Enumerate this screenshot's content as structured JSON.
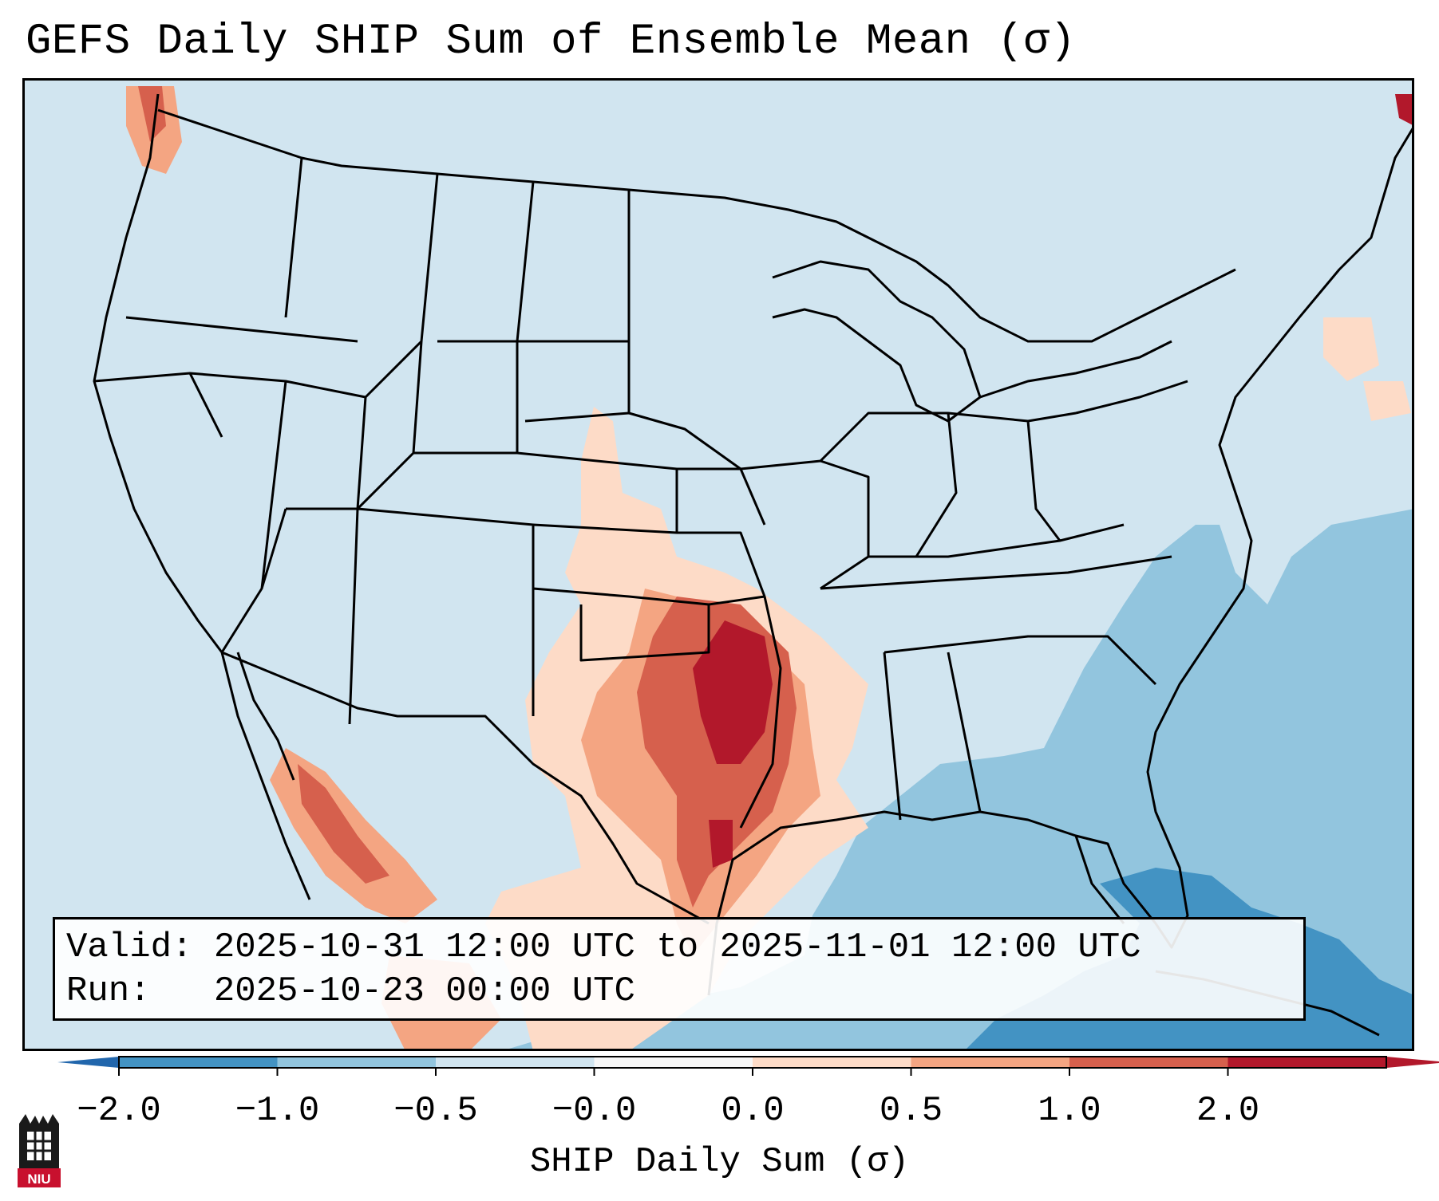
{
  "title": "GEFS Daily SHIP Sum of Ensemble Mean (σ)",
  "info": {
    "valid_label": "Valid:",
    "valid_value": "2025-10-31 12:00 UTC to 2025-11-01 12:00 UTC",
    "run_label": "Run:",
    "run_value": "2025-10-23 00:00 UTC"
  },
  "colorbar": {
    "label": "SHIP Daily Sum (σ)",
    "ticks": [
      "−2.0",
      "−1.0",
      "−0.5",
      "−0.0",
      "0.0",
      "0.5",
      "1.0",
      "2.0"
    ],
    "colors": [
      "#4393c3",
      "#92c5de",
      "#d1e5f0",
      "#f7f7f7",
      "#fddbc7",
      "#f4a582",
      "#d6604d",
      "#b2182b"
    ],
    "extend_low_color": "#2166ac",
    "extend_high_color": "#b2182b"
  },
  "map": {
    "region": "Contiguous United States",
    "background_color": "#d1e5f0",
    "features": [
      {
        "name": "southern-plains-max",
        "category_index": 7,
        "label": "Oklahoma / north Texas maximum"
      },
      {
        "name": "gulf-minimum",
        "category_index": 0,
        "label": "Gulf of Mexico / Caribbean minimum"
      },
      {
        "name": "atlantic-negative",
        "category_index": 1,
        "label": "Western Atlantic negative anomaly"
      }
    ]
  },
  "logo": {
    "text": "NIU",
    "colors": {
      "red": "#c8102e",
      "black": "#1a1a1a"
    }
  }
}
